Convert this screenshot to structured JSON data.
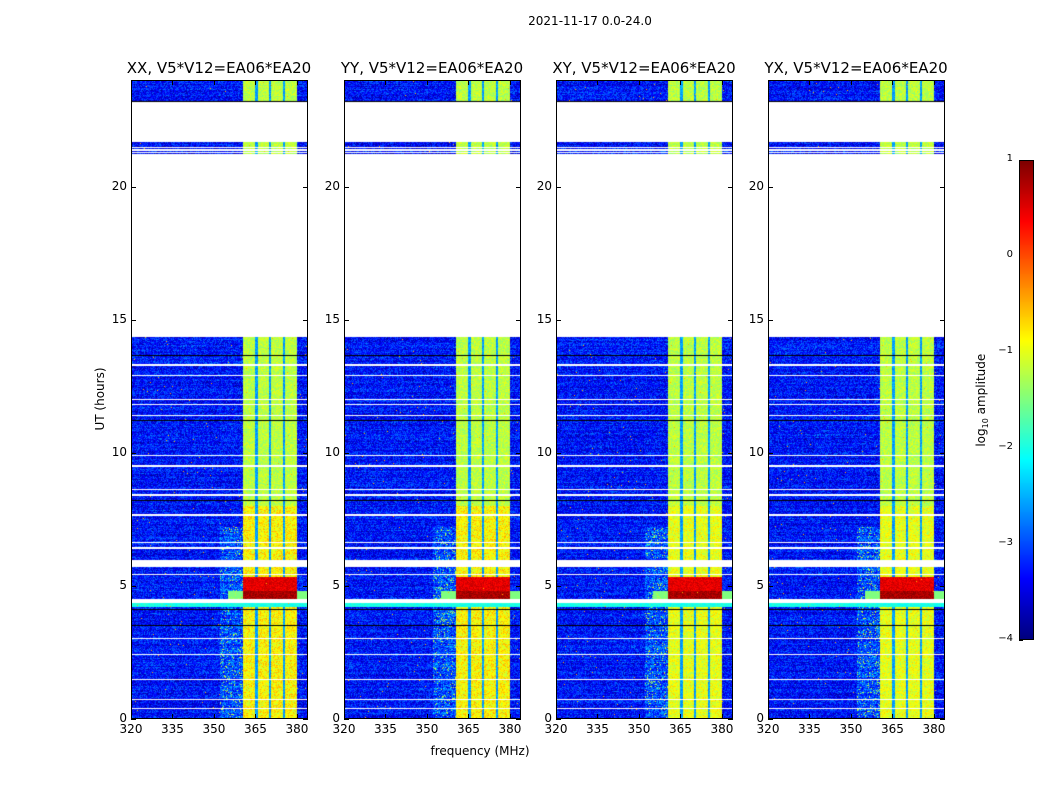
{
  "chart_data": {
    "type": "heatmap",
    "title": "2021-11-17 0.0-24.0",
    "xlabel": "frequency (MHz)",
    "ylabel": "UT (hours)",
    "xlim": [
      320,
      384
    ],
    "ylim": [
      0,
      24
    ],
    "xticks": [
      320,
      335,
      350,
      365,
      380
    ],
    "yticks": [
      0,
      5,
      10,
      15,
      20
    ],
    "colorbar": {
      "label": "log10 amplitude",
      "label_main": "log",
      "label_sub": "10",
      "label_rest": " amplitude",
      "range": [
        -4,
        1
      ],
      "ticks": [
        1,
        0,
        -1,
        -2,
        -3,
        -4
      ],
      "tick_labels": [
        "1",
        "0",
        "−1",
        "−2",
        "−3",
        "−4"
      ],
      "colormap": "jet"
    },
    "panels": [
      {
        "title": "XX, V5*V12=EA06*EA20"
      },
      {
        "title": "YY, V5*V12=EA06*EA20"
      },
      {
        "title": "XY, V5*V12=EA06*EA20"
      },
      {
        "title": "YX, V5*V12=EA06*EA20"
      }
    ],
    "background_level": -3.3,
    "bright_band_MHz": [
      360.6,
      380.3
    ],
    "bright_band_level": -1.2,
    "band_dips_MHz": [
      365.4,
      370.5,
      375.6
    ],
    "peak_interval_hours": [
      4.5,
      5.3
    ],
    "peak_level": 0.5,
    "flagged_hours": [
      [
        21.7,
        23.2
      ],
      [
        20.5,
        21.25
      ],
      [
        14.35,
        20.5
      ],
      [
        5.7,
        5.97
      ],
      [
        4.35,
        4.5
      ]
    ],
    "flag_lines_hours": [
      13.3,
      12.9,
      12.0,
      11.8,
      11.4,
      9.9,
      9.5,
      8.6,
      8.4,
      7.65,
      6.6,
      6.4,
      5.4,
      3.0,
      2.4,
      1.45,
      0.7,
      0.35,
      21.5,
      21.4,
      21.3
    ],
    "dark_lines_hours": [
      23.22,
      13.65,
      11.2,
      8.2,
      4.1,
      3.5
    ]
  }
}
